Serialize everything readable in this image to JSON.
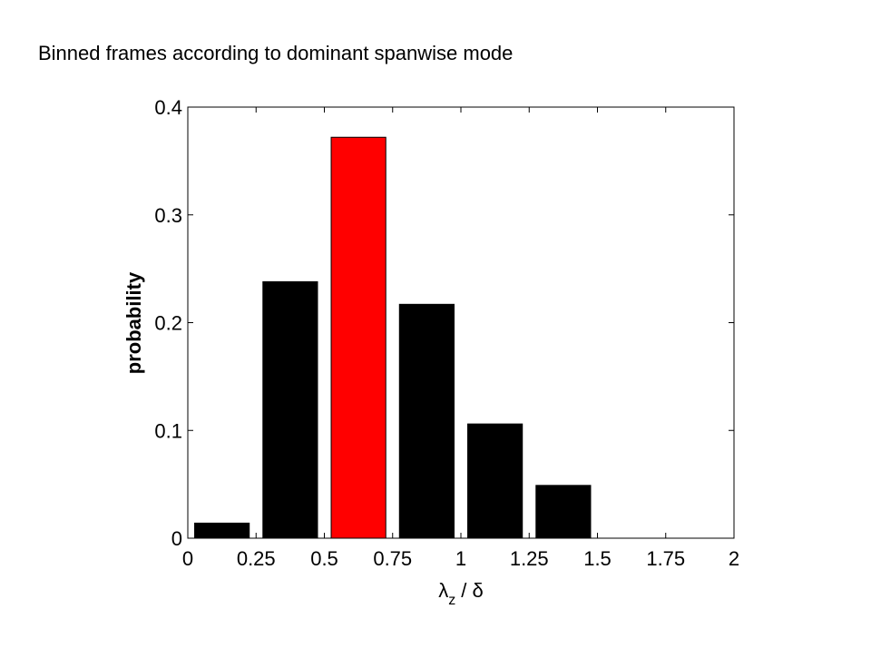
{
  "chart_data": {
    "type": "histogram",
    "title": "Binned frames according to dominant spanwise mode",
    "ylabel": "probability",
    "xlabel_symbol": "λ",
    "xlabel_subscript": "z",
    "xlabel_rest": "/ δ",
    "bins": [
      0,
      0.25,
      0.5,
      0.75,
      1,
      1.25,
      1.5
    ],
    "values": [
      0.014,
      0.238,
      0.372,
      0.217,
      0.106,
      0.049
    ],
    "colors": [
      "#000000",
      "#000000",
      "#ff0000",
      "#000000",
      "#000000",
      "#000000"
    ],
    "xlim": [
      0,
      2
    ],
    "xticks": [
      0,
      0.25,
      0.5,
      0.75,
      1,
      1.25,
      1.5,
      1.75,
      2
    ],
    "ylim": [
      0,
      0.4
    ],
    "yticks": [
      0,
      0.1,
      0.2,
      0.3,
      0.4
    ]
  }
}
